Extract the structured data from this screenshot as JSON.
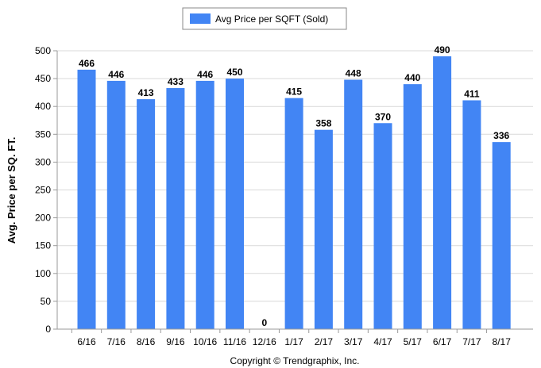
{
  "chart_data": {
    "type": "bar",
    "categories": [
      "6/16",
      "7/16",
      "8/16",
      "9/16",
      "10/16",
      "11/16",
      "12/16",
      "1/17",
      "2/17",
      "3/17",
      "4/17",
      "5/17",
      "6/17",
      "7/17",
      "8/17"
    ],
    "series": [
      {
        "name": "Avg Price per SQFT (Sold)",
        "values": [
          466,
          446,
          413,
          433,
          446,
          450,
          0,
          415,
          358,
          448,
          370,
          440,
          490,
          411,
          336
        ]
      }
    ],
    "ylabel": "Avg. Price per SQ. FT.",
    "xlabel": "",
    "ylim": [
      0,
      500
    ],
    "yticks": [
      0,
      50,
      100,
      150,
      200,
      250,
      300,
      350,
      400,
      450,
      500
    ],
    "grid": true,
    "legend": "top-center",
    "bar_color": "#4285f4",
    "copyright": "Copyright © Trendgraphix, Inc."
  }
}
